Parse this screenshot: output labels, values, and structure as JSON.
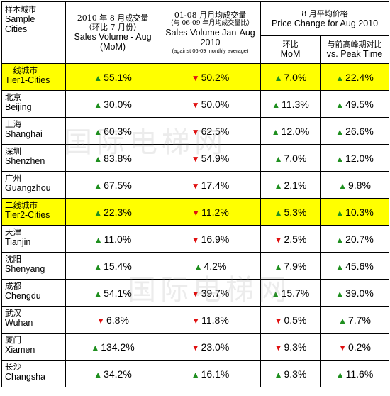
{
  "header": {
    "city_zh": "样本城市",
    "city_en": "Sample Cities",
    "mom_zh1": "2010 年 8 月成交量",
    "mom_zh2": "（环比 7 月份）",
    "mom_en": "Sales Volume - Aug (MoM)",
    "jan_zh1": "01-08 月月均成交量",
    "jan_zh2": "（与 06-09 年月均成交量比）",
    "jan_en": "Sales Volume Jan-Aug 2010",
    "jan_note": "(against 06-09 monthly average)",
    "pc_zh": "8 月平均价格",
    "pc_en": "Price Change for Aug 2010",
    "sub_mom_zh": "环比",
    "sub_mom_en": "MoM",
    "sub_peak_zh": "与前高峰期对比",
    "sub_peak_en": "vs. Peak Time"
  },
  "rows": [
    {
      "zh": "一线城市",
      "en": "Tier1-Cities",
      "tier": true,
      "cells": [
        {
          "d": "up",
          "v": "55.1%"
        },
        {
          "d": "down",
          "v": "50.2%"
        },
        {
          "d": "up",
          "v": "7.0%"
        },
        {
          "d": "up",
          "v": "22.4%"
        }
      ]
    },
    {
      "zh": "北京",
      "en": "Beijing",
      "tier": false,
      "cells": [
        {
          "d": "up",
          "v": "30.0%"
        },
        {
          "d": "down",
          "v": "50.0%"
        },
        {
          "d": "up",
          "v": "11.3%"
        },
        {
          "d": "up",
          "v": "49.5%"
        }
      ]
    },
    {
      "zh": "上海",
      "en": "Shanghai",
      "tier": false,
      "cells": [
        {
          "d": "up",
          "v": "60.3%"
        },
        {
          "d": "down",
          "v": "62.5%"
        },
        {
          "d": "up",
          "v": "12.0%"
        },
        {
          "d": "up",
          "v": "26.6%"
        }
      ]
    },
    {
      "zh": "深圳",
      "en": "Shenzhen",
      "tier": false,
      "cells": [
        {
          "d": "up",
          "v": "83.8%"
        },
        {
          "d": "down",
          "v": "54.9%"
        },
        {
          "d": "up",
          "v": "7.0%"
        },
        {
          "d": "up",
          "v": "12.0%"
        }
      ]
    },
    {
      "zh": "广州",
      "en": "Guangzhou",
      "tier": false,
      "cells": [
        {
          "d": "up",
          "v": "67.5%"
        },
        {
          "d": "down",
          "v": "17.4%"
        },
        {
          "d": "up",
          "v": "2.1%"
        },
        {
          "d": "up",
          "v": "9.8%"
        }
      ]
    },
    {
      "zh": "二线城市",
      "en": "Tier2-Cities",
      "tier": true,
      "cells": [
        {
          "d": "up",
          "v": "22.3%"
        },
        {
          "d": "down",
          "v": "11.2%"
        },
        {
          "d": "up",
          "v": "5.3%"
        },
        {
          "d": "up",
          "v": "10.3%"
        }
      ]
    },
    {
      "zh": "天津",
      "en": "Tianjin",
      "tier": false,
      "cells": [
        {
          "d": "up",
          "v": "11.0%"
        },
        {
          "d": "down",
          "v": "16.9%"
        },
        {
          "d": "down",
          "v": "2.5%"
        },
        {
          "d": "up",
          "v": "20.7%"
        }
      ]
    },
    {
      "zh": "沈阳",
      "en": "Shenyang",
      "tier": false,
      "cells": [
        {
          "d": "up",
          "v": "15.4%"
        },
        {
          "d": "up",
          "v": "4.2%"
        },
        {
          "d": "up",
          "v": "7.9%"
        },
        {
          "d": "up",
          "v": "45.6%"
        }
      ]
    },
    {
      "zh": "成都",
      "en": "Chengdu",
      "tier": false,
      "cells": [
        {
          "d": "up",
          "v": "54.1%"
        },
        {
          "d": "down",
          "v": "39.7%"
        },
        {
          "d": "up",
          "v": "15.7%"
        },
        {
          "d": "up",
          "v": "39.0%"
        }
      ]
    },
    {
      "zh": "武汉",
      "en": "Wuhan",
      "tier": false,
      "cells": [
        {
          "d": "down",
          "v": "6.8%"
        },
        {
          "d": "down",
          "v": "11.8%"
        },
        {
          "d": "down",
          "v": "0.5%"
        },
        {
          "d": "up",
          "v": "7.7%"
        }
      ]
    },
    {
      "zh": "厦门",
      "en": "Xiamen",
      "tier": false,
      "cells": [
        {
          "d": "up",
          "v": "134.2%"
        },
        {
          "d": "down",
          "v": "23.0%"
        },
        {
          "d": "down",
          "v": "9.3%"
        },
        {
          "d": "down",
          "v": "0.2%"
        }
      ]
    },
    {
      "zh": "长沙",
      "en": "Changsha",
      "tier": false,
      "cells": [
        {
          "d": "up",
          "v": "34.2%"
        },
        {
          "d": "up",
          "v": "16.1%"
        },
        {
          "d": "up",
          "v": "9.3%"
        },
        {
          "d": "up",
          "v": "11.6%"
        }
      ]
    }
  ],
  "watermark": "国际电梯网",
  "colors": {
    "up": "#1f8f1f",
    "down": "#e01010",
    "tier_bg": "#ffff00"
  }
}
